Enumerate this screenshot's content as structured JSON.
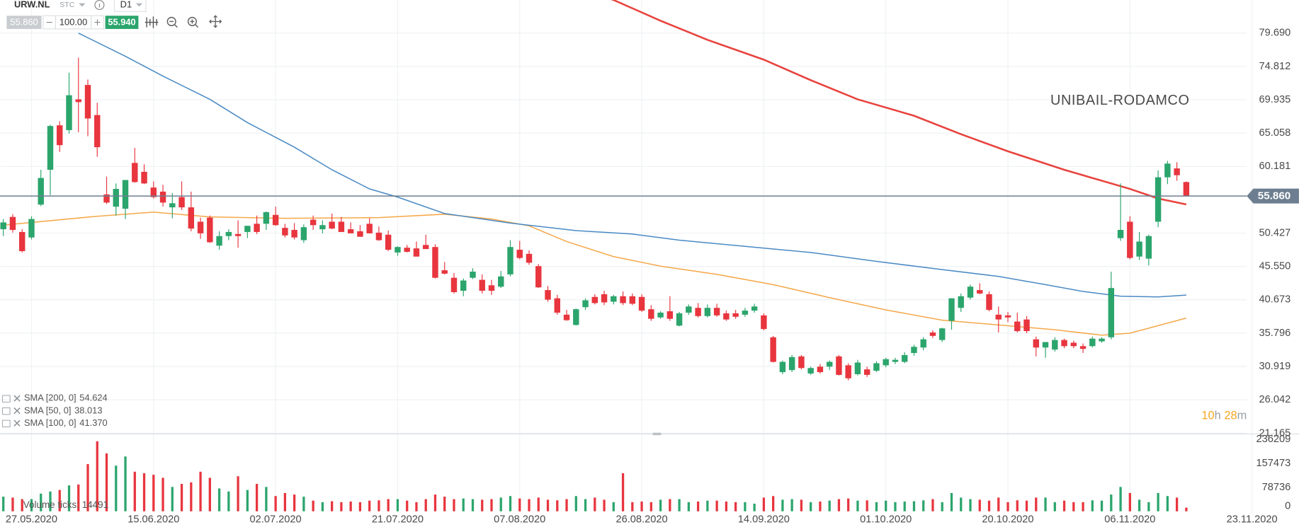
{
  "header": {
    "symbol": "URW.NL",
    "exchange": "STC",
    "timeframe": "D1",
    "bid": "55.860",
    "lot": "100.00",
    "ask": "55.940"
  },
  "chart_data": {
    "type": "candlestick",
    "title": "UNIBAIL-RODAMCO",
    "xticks": [
      {
        "value": 3,
        "label": "27.05.2020"
      },
      {
        "value": 16,
        "label": "15.06.2020"
      },
      {
        "value": 29,
        "label": "02.07.2020"
      },
      {
        "value": 42,
        "label": "21.07.2020"
      },
      {
        "value": 55,
        "label": "07.08.2020"
      },
      {
        "value": 68,
        "label": "26.08.2020"
      },
      {
        "value": 81,
        "label": "14.09.2020"
      },
      {
        "value": 94,
        "label": "01.10.2020"
      },
      {
        "value": 107,
        "label": "20.10.2020"
      },
      {
        "value": 120,
        "label": "06.11.2020"
      },
      {
        "value": 133,
        "label": "23.11.2020"
      }
    ],
    "xlim": [
      -0.35,
      138.0
    ],
    "ylim": [
      21.0,
      84.53
    ],
    "yticks": [
      {
        "value": 79.69,
        "label": "79.690"
      },
      74.812,
      69.935,
      65.058,
      60.181,
      50.427,
      {
        "value": 45.55,
        "label": "45.550"
      },
      40.673,
      35.796,
      30.919,
      26.042,
      21.165
    ],
    "grid": true,
    "colors": {
      "up": "#2ba56c",
      "down": "#e8353e"
    },
    "open": [
      51.0,
      52.8,
      50.6,
      49.8,
      54.6,
      59.7,
      66.2,
      65.5,
      70.0,
      72.1,
      67.7,
      56.1,
      54.3,
      54.0,
      60.7,
      59.4,
      57.1,
      56.5,
      54.2,
      55.7,
      54.2,
      52.1,
      52.7,
      48.6,
      50.0,
      50.3,
      50.6,
      51.8,
      51.8,
      53.1,
      51.2,
      50.9,
      49.4,
      52.4,
      51.0,
      52.1,
      52.1,
      51.0,
      50.7,
      51.8,
      50.5,
      50.2,
      47.6,
      48.3,
      48.2,
      48.7,
      48.4,
      45.0,
      43.9,
      42.0,
      43.9,
      43.6,
      42.8,
      42.6,
      44.4,
      48.0,
      47.4,
      45.6,
      42.1,
      40.9,
      38.5,
      37.0,
      39.6,
      41.1,
      41.5,
      40.4,
      41.2,
      41.2,
      41.1,
      39.3,
      38.1,
      39.0,
      36.9,
      38.8,
      39.5,
      38.3,
      39.5,
      38.7,
      38.7,
      38.5,
      39.1,
      38.4,
      35.2,
      30.1,
      30.4,
      32.4,
      29.9,
      30.9,
      30.9,
      32.4,
      31.1,
      29.8,
      30.5,
      30.3,
      31.1,
      31.6,
      31.6,
      32.9,
      33.7,
      35.9,
      34.8,
      37.6,
      39.5,
      41.0,
      42.1,
      41.5,
      38.5,
      38.4,
      37.5,
      37.8,
      34.9,
      33.7,
      33.4,
      34.8,
      34.4,
      33.9,
      33.9,
      34.6,
      35.2,
      49.7,
      52.1,
      47.0,
      46.7,
      52.1,
      58.6,
      59.9,
      57.9
    ],
    "high": [
      52.5,
      53.2,
      51.0,
      52.9,
      59.7,
      66.3,
      66.8,
      73.9,
      76.1,
      72.9,
      69.5,
      58.7,
      57.7,
      58.2,
      62.9,
      60.5,
      58.0,
      57.5,
      56.3,
      58.0,
      56.5,
      52.7,
      53.0,
      50.7,
      51.0,
      52.3,
      51.5,
      53.0,
      53.6,
      54.3,
      51.8,
      51.9,
      51.7,
      53.0,
      52.3,
      53.3,
      52.8,
      52.0,
      51.6,
      52.6,
      51.4,
      50.8,
      48.5,
      48.7,
      49.2,
      50.2,
      48.8,
      46.2,
      44.6,
      43.8,
      45.3,
      44.4,
      43.6,
      44.9,
      49.4,
      49.3,
      47.9,
      45.9,
      42.7,
      41.4,
      39.2,
      39.4,
      40.9,
      41.5,
      42.0,
      41.4,
      41.9,
      41.6,
      41.5,
      39.9,
      39.0,
      41.2,
      38.9,
      40.0,
      40.2,
      40.0,
      40.1,
      39.1,
      39.2,
      39.5,
      40.1,
      38.7,
      35.4,
      31.8,
      32.6,
      32.6,
      30.9,
      31.3,
      31.8,
      32.6,
      31.4,
      31.9,
      30.9,
      31.7,
      32.2,
      32.2,
      33.0,
      34.1,
      35.2,
      36.2,
      36.6,
      40.9,
      41.6,
      42.9,
      43.1,
      41.9,
      39.7,
      38.9,
      38.8,
      38.3,
      35.3,
      34.5,
      35.2,
      35.0,
      34.7,
      34.3,
      35.3,
      35.2,
      44.8,
      57.7,
      52.9,
      50.6,
      50.2,
      59.6,
      61.0,
      60.8,
      58.0
    ],
    "low": [
      50.0,
      50.5,
      47.6,
      49.5,
      54.4,
      56.0,
      62.3,
      65.0,
      65.2,
      64.6,
      61.6,
      54.7,
      53.0,
      52.5,
      57.8,
      57.6,
      55.5,
      54.3,
      52.6,
      53.8,
      50.7,
      49.6,
      49.0,
      48.0,
      49.4,
      48.3,
      49.7,
      50.3,
      50.9,
      51.5,
      49.8,
      49.5,
      49.0,
      50.9,
      50.4,
      51.0,
      50.6,
      50.4,
      49.9,
      50.4,
      49.3,
      47.8,
      47.1,
      47.6,
      47.0,
      48.1,
      43.8,
      44.4,
      41.6,
      41.2,
      43.7,
      41.6,
      41.4,
      42.4,
      44.1,
      46.6,
      45.8,
      42.4,
      40.4,
      38.5,
      37.6,
      36.9,
      39.2,
      40.0,
      39.9,
      40.0,
      39.9,
      39.9,
      38.9,
      37.6,
      37.9,
      37.6,
      36.8,
      38.5,
      38.1,
      38.1,
      38.2,
      37.6,
      37.9,
      38.2,
      38.8,
      36.2,
      31.5,
      29.8,
      30.1,
      30.5,
      29.7,
      29.9,
      30.4,
      29.6,
      28.9,
      29.6,
      29.4,
      30.1,
      30.8,
      31.3,
      31.4,
      32.5,
      33.3,
      35.1,
      34.5,
      36.3,
      38.9,
      40.7,
      41.5,
      39.0,
      35.9,
      37.4,
      35.9,
      35.8,
      32.4,
      32.2,
      33.1,
      33.6,
      33.6,
      32.9,
      33.7,
      34.4,
      34.9,
      49.3,
      46.6,
      46.5,
      45.7,
      51.3,
      57.6,
      58.1,
      55.86
    ],
    "close": [
      52.0,
      50.9,
      47.8,
      52.5,
      58.5,
      66.1,
      63.3,
      70.6,
      69.6,
      67.2,
      63.0,
      54.9,
      56.9,
      58.2,
      57.9,
      57.7,
      55.7,
      54.9,
      54.8,
      54.2,
      51.1,
      50.4,
      49.1,
      50.0,
      50.6,
      50.0,
      51.5,
      50.6,
      53.5,
      51.6,
      50.1,
      49.8,
      51.3,
      51.6,
      51.6,
      51.1,
      50.6,
      50.4,
      49.9,
      50.4,
      49.4,
      48.0,
      48.4,
      47.7,
      47.0,
      48.1,
      43.9,
      44.5,
      41.8,
      43.5,
      44.8,
      42.0,
      42.0,
      44.1,
      48.4,
      46.8,
      46.1,
      42.5,
      40.7,
      38.8,
      37.7,
      39.3,
      40.6,
      40.2,
      40.3,
      41.2,
      40.2,
      40.1,
      39.1,
      37.9,
      38.8,
      37.9,
      38.7,
      39.7,
      38.3,
      39.5,
      38.4,
      37.8,
      38.2,
      39.1,
      39.7,
      36.4,
      31.6,
      31.6,
      32.3,
      30.7,
      30.7,
      30.1,
      31.6,
      29.7,
      29.2,
      31.5,
      29.7,
      31.4,
      32.0,
      31.9,
      32.6,
      33.8,
      34.9,
      35.4,
      36.5,
      40.9,
      41.2,
      42.6,
      41.6,
      39.2,
      37.8,
      38.1,
      36.1,
      36.1,
      33.7,
      34.5,
      34.8,
      33.9,
      33.9,
      33.5,
      35.0,
      35.0,
      42.4,
      50.9,
      46.8,
      49.2,
      50.0,
      58.6,
      60.6,
      58.9,
      55.86
    ],
    "last_price": {
      "value": 55.86,
      "label": "55.860"
    },
    "sma": [
      {
        "name": "SMA [200, 0]",
        "color": "#e8433e",
        "value_label": "54.624",
        "x": [
          64,
          65,
          70,
          75,
          81,
          86,
          91,
          97,
          102,
          107,
          113,
          116,
          120,
          123,
          126
        ],
        "values": [
          85.0,
          84.53,
          81.5,
          78.7,
          75.8,
          72.8,
          70.0,
          67.6,
          64.9,
          62.4,
          59.7,
          58.5,
          56.9,
          55.5,
          54.624
        ]
      },
      {
        "name": "SMA [50, 0]",
        "color": "#f5a84a",
        "value_label": "38.013",
        "x": [
          0,
          10,
          16,
          22,
          30,
          40,
          47,
          52,
          56,
          60,
          65,
          70,
          76,
          82,
          88,
          94,
          100,
          106,
          112,
          117,
          120,
          123,
          126
        ],
        "values": [
          51.6,
          52.9,
          53.5,
          52.8,
          52.6,
          52.7,
          53.2,
          52.5,
          51.5,
          49.2,
          47.0,
          45.6,
          44.4,
          42.9,
          41.0,
          39.2,
          37.7,
          37.0,
          36.3,
          35.5,
          35.8,
          36.9,
          38.013
        ]
      },
      {
        "name": "SMA [100, 0]",
        "color": "#4a8ac4",
        "value_label": "41.370",
        "x": [
          8,
          13,
          17,
          22,
          26,
          31,
          35,
          39,
          42,
          47,
          54,
          61,
          67,
          72,
          79,
          86,
          93,
          100,
          106,
          111,
          115,
          119,
          123,
          126
        ],
        "values": [
          79.69,
          76.3,
          73.4,
          70.0,
          66.6,
          63.0,
          59.7,
          56.9,
          55.7,
          53.3,
          51.9,
          50.8,
          50.3,
          49.4,
          48.5,
          47.6,
          46.3,
          45.1,
          44.1,
          42.9,
          41.9,
          41.2,
          41.1,
          41.37
        ]
      }
    ],
    "volume": {
      "ylim": [
        0,
        250000
      ],
      "yticks": [
        236209,
        157473,
        78736,
        0
      ],
      "label": "Volume ticks: 14491",
      "values": [
        48000,
        45000,
        40000,
        40000,
        58000,
        65000,
        70000,
        85000,
        88000,
        155000,
        230000,
        190000,
        150000,
        180000,
        130000,
        125000,
        120000,
        110000,
        80000,
        90000,
        95000,
        130000,
        110000,
        75000,
        65000,
        115000,
        70000,
        90000,
        80000,
        50000,
        60000,
        55000,
        48000,
        35000,
        30000,
        33000,
        30000,
        32000,
        30000,
        35000,
        36000,
        40000,
        40000,
        35000,
        30000,
        40000,
        55000,
        48000,
        40000,
        42000,
        40000,
        38000,
        40000,
        45000,
        50000,
        42000,
        40000,
        45000,
        38000,
        36000,
        40000,
        50000,
        40000,
        45000,
        38000,
        30000,
        125000,
        30000,
        32000,
        30000,
        38000,
        40000,
        40000,
        30000,
        32000,
        35000,
        35000,
        32000,
        30000,
        30000,
        25000,
        45000,
        50000,
        38000,
        40000,
        38000,
        30000,
        32000,
        35000,
        40000,
        42000,
        35000,
        36000,
        30000,
        35000,
        30000,
        32000,
        33000,
        36000,
        40000,
        30000,
        60000,
        45000,
        40000,
        38000,
        35000,
        45000,
        30000,
        36000,
        35000,
        45000,
        45000,
        30000,
        35000,
        30000,
        30000,
        36000,
        35000,
        55000,
        80000,
        60000,
        38000,
        30000,
        60000,
        50000,
        45000,
        12000
      ]
    },
    "countdown": [
      "10",
      "h",
      "28",
      "m"
    ]
  }
}
